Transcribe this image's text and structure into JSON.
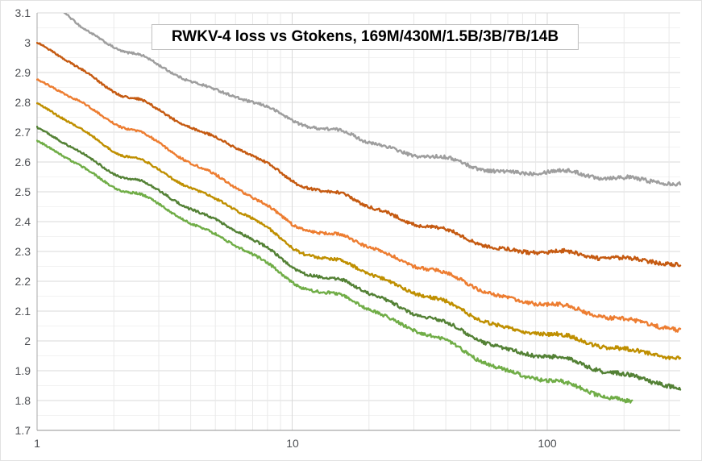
{
  "title": "RWKV-4 loss vs Gtokens, 169M/430M/1.5B/3B/7B/14B",
  "colors": {
    "grid_major": "#d9d9d9",
    "grid_minor": "#f2f2f2",
    "grid_v_minor": "#e9e9e9",
    "axis_line": "#a9a9a9",
    "tick_text": "#4d4f53",
    "title_border": "#bfbfbf",
    "background": "#ffffff"
  },
  "chart_data": {
    "type": "line",
    "title": "RWKV-4 loss vs Gtokens, 169M/430M/1.5B/3B/7B/14B",
    "xlabel": "",
    "ylabel": "",
    "x_scale": "log",
    "xlim": [
      1,
      332
    ],
    "ylim": [
      1.7,
      3.1
    ],
    "grid": "major+minor",
    "legend_position": "none",
    "x_ticks": [
      {
        "value": 1,
        "label": "1"
      },
      {
        "value": 10,
        "label": "10"
      },
      {
        "value": 100,
        "label": "100"
      }
    ],
    "y_ticks": [
      {
        "value": 3.1,
        "label": "3.1"
      },
      {
        "value": 3.0,
        "label": "3"
      },
      {
        "value": 2.9,
        "label": "2.9"
      },
      {
        "value": 2.8,
        "label": "2.8"
      },
      {
        "value": 2.7,
        "label": "2.7"
      },
      {
        "value": 2.6,
        "label": "2.6"
      },
      {
        "value": 2.5,
        "label": "2.5"
      },
      {
        "value": 2.4,
        "label": "2.4"
      },
      {
        "value": 2.3,
        "label": "2.3"
      },
      {
        "value": 2.2,
        "label": "2.2"
      },
      {
        "value": 2.1,
        "label": "2.1"
      },
      {
        "value": 2.0,
        "label": "2"
      },
      {
        "value": 1.9,
        "label": "1.9"
      },
      {
        "value": 1.8,
        "label": "1.8"
      },
      {
        "value": 1.7,
        "label": "1.7"
      }
    ],
    "y_minor_step": 0.05,
    "series": [
      {
        "name": "169M",
        "color": "#9e9e9e",
        "points": [
          [
            1,
            3.17
          ],
          [
            1.5,
            3.05
          ],
          [
            2,
            3.0
          ],
          [
            3,
            2.92
          ],
          [
            5,
            2.835
          ],
          [
            7,
            2.79
          ],
          [
            10,
            2.755
          ],
          [
            15,
            2.7
          ],
          [
            20,
            2.66
          ],
          [
            30,
            2.62
          ],
          [
            50,
            2.59
          ],
          [
            100,
            2.565
          ],
          [
            200,
            2.54
          ],
          [
            332,
            2.53
          ]
        ]
      },
      {
        "name": "430M",
        "color": "#c55a11",
        "points": [
          [
            1,
            2.985
          ],
          [
            1.5,
            2.91
          ],
          [
            2,
            2.85
          ],
          [
            3,
            2.77
          ],
          [
            5,
            2.675
          ],
          [
            7,
            2.61
          ],
          [
            10,
            2.55
          ],
          [
            15,
            2.49
          ],
          [
            20,
            2.445
          ],
          [
            30,
            2.39
          ],
          [
            50,
            2.34
          ],
          [
            100,
            2.295
          ],
          [
            200,
            2.27
          ],
          [
            332,
            2.26
          ]
        ]
      },
      {
        "name": "1.5B",
        "color": "#ed7d31",
        "points": [
          [
            1,
            2.86
          ],
          [
            1.5,
            2.8
          ],
          [
            2,
            2.745
          ],
          [
            3,
            2.66
          ],
          [
            5,
            2.55
          ],
          [
            7,
            2.47
          ],
          [
            10,
            2.405
          ],
          [
            15,
            2.35
          ],
          [
            20,
            2.31
          ],
          [
            30,
            2.25
          ],
          [
            50,
            2.19
          ],
          [
            100,
            2.12
          ],
          [
            200,
            2.065
          ],
          [
            332,
            2.04
          ]
        ]
      },
      {
        "name": "3B",
        "color": "#bf8f00",
        "points": [
          [
            1,
            2.78
          ],
          [
            1.5,
            2.71
          ],
          [
            2,
            2.65
          ],
          [
            3,
            2.57
          ],
          [
            5,
            2.47
          ],
          [
            7,
            2.4
          ],
          [
            10,
            2.325
          ],
          [
            15,
            2.265
          ],
          [
            20,
            2.22
          ],
          [
            30,
            2.16
          ],
          [
            50,
            2.09
          ],
          [
            100,
            2.02
          ],
          [
            200,
            1.965
          ],
          [
            332,
            1.945
          ]
        ]
      },
      {
        "name": "7B",
        "color": "#538135",
        "points": [
          [
            1,
            2.7
          ],
          [
            1.5,
            2.63
          ],
          [
            2,
            2.575
          ],
          [
            3,
            2.5
          ],
          [
            5,
            2.4
          ],
          [
            7,
            2.33
          ],
          [
            10,
            2.26
          ],
          [
            15,
            2.2
          ],
          [
            20,
            2.155
          ],
          [
            30,
            2.09
          ],
          [
            50,
            2.02
          ],
          [
            100,
            1.945
          ],
          [
            200,
            1.88
          ],
          [
            332,
            1.845
          ]
        ]
      },
      {
        "name": "14B",
        "color": "#70ad47",
        "points": [
          [
            1,
            2.655
          ],
          [
            1.5,
            2.585
          ],
          [
            2,
            2.53
          ],
          [
            3,
            2.455
          ],
          [
            5,
            2.35
          ],
          [
            7,
            2.28
          ],
          [
            10,
            2.21
          ],
          [
            15,
            2.15
          ],
          [
            20,
            2.1
          ],
          [
            30,
            2.035
          ],
          [
            50,
            1.955
          ],
          [
            100,
            1.865
          ],
          [
            150,
            1.825
          ],
          [
            215,
            1.785
          ]
        ]
      }
    ]
  }
}
